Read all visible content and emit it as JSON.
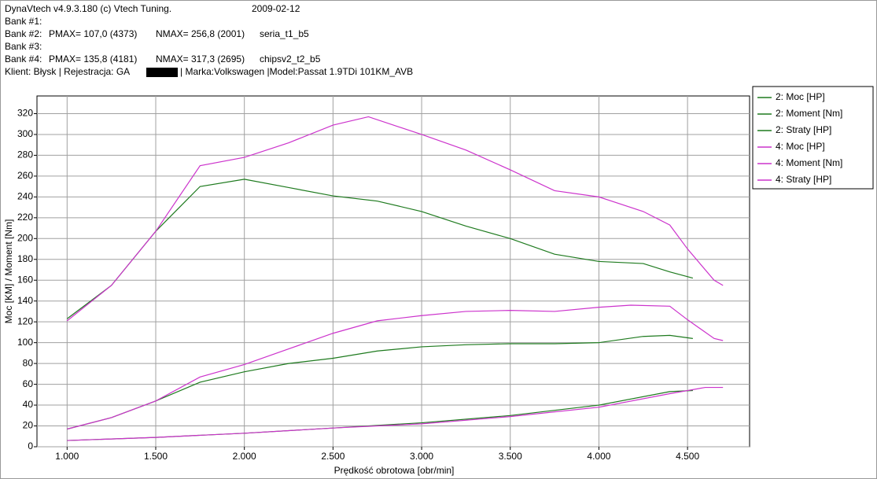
{
  "header": {
    "program": "DynaVtech v4.9.3.180 (c) Vtech Tuning.",
    "date": "2009-02-12",
    "banks": [
      {
        "label": "Bank #1:"
      },
      {
        "label": "Bank #2:",
        "pmax": "PMAX= 107,0 (4373)",
        "nmax": "NMAX= 256,8 (2001)",
        "name": "seria_t1_b5"
      },
      {
        "label": "Bank #3:"
      },
      {
        "label": "Bank #4:",
        "pmax": "PMAX= 135,8 (4181)",
        "nmax": "NMAX= 317,3 (2695)",
        "name": "chipsv2_t2_b5"
      }
    ],
    "client": "Klient: Błysk | Rejestracja: GA",
    "vehicle": "| Marka:Volkswagen |Model:Passat 1.9TDi 101KM_AVB"
  },
  "chart_data": {
    "type": "line",
    "x_label": "Prędkość obrotowa [obr/min]",
    "y_label": "Moc [KM] / Moment [Nm]",
    "xlim": [
      830,
      4850
    ],
    "ylim": [
      0,
      337
    ],
    "xticks": [
      {
        "value": 1000,
        "label": "1.000"
      },
      {
        "value": 1500,
        "label": "1.500"
      },
      {
        "value": 2000,
        "label": "2.000"
      },
      {
        "value": 2500,
        "label": "2.500"
      },
      {
        "value": 3000,
        "label": "3.000"
      },
      {
        "value": 3500,
        "label": "3.500"
      },
      {
        "value": 4000,
        "label": "4.000"
      },
      {
        "value": 4500,
        "label": "4.500"
      }
    ],
    "yticks": [
      0,
      20,
      40,
      60,
      80,
      100,
      120,
      140,
      160,
      180,
      200,
      220,
      240,
      260,
      280,
      300,
      320
    ],
    "grid": true,
    "legend": "right",
    "series": [
      {
        "name": "2: Moc [HP]",
        "color": "#1e7a1e",
        "x": [
          1000,
          1250,
          1500,
          1750,
          2000,
          2250,
          2500,
          2750,
          3000,
          3250,
          3500,
          3750,
          4000,
          4250,
          4400,
          4530
        ],
        "values": [
          17,
          28,
          44,
          62,
          72,
          80,
          85,
          92,
          96,
          98,
          99,
          99,
          100,
          106,
          107,
          104
        ]
      },
      {
        "name": "2: Moment [Nm]",
        "color": "#1e7a1e",
        "x": [
          1000,
          1250,
          1500,
          1750,
          2000,
          2250,
          2500,
          2750,
          3000,
          3250,
          3500,
          3750,
          4000,
          4250,
          4400,
          4530
        ],
        "values": [
          123,
          155,
          207,
          250,
          257,
          249,
          241,
          236,
          226,
          212,
          200,
          185,
          178,
          176,
          168,
          162
        ]
      },
      {
        "name": "2: Straty [HP]",
        "color": "#1e7a1e",
        "x": [
          1000,
          1500,
          2000,
          2500,
          3000,
          3500,
          4000,
          4400,
          4530
        ],
        "values": [
          6,
          9,
          13,
          18,
          23,
          30,
          40,
          53,
          54
        ]
      },
      {
        "name": "4: Moc [HP]",
        "color": "#cc33cc",
        "x": [
          1000,
          1250,
          1500,
          1750,
          2000,
          2250,
          2500,
          2750,
          3000,
          3250,
          3500,
          3750,
          4000,
          4180,
          4400,
          4500,
          4650,
          4700
        ],
        "values": [
          17,
          28,
          44,
          67,
          79,
          94,
          109,
          121,
          126,
          130,
          131,
          130,
          134,
          136,
          135,
          122,
          104,
          102
        ]
      },
      {
        "name": "4: Moment [Nm]",
        "color": "#cc33cc",
        "x": [
          1000,
          1250,
          1500,
          1750,
          2000,
          2250,
          2500,
          2700,
          3000,
          3250,
          3500,
          3750,
          4000,
          4250,
          4400,
          4500,
          4650,
          4700
        ],
        "values": [
          121,
          155,
          207,
          270,
          278,
          292,
          309,
          317,
          300,
          285,
          266,
          246,
          240,
          226,
          213,
          190,
          160,
          155
        ]
      },
      {
        "name": "4: Straty [HP]",
        "color": "#cc33cc",
        "x": [
          1000,
          1500,
          2000,
          2500,
          3000,
          3500,
          4000,
          4400,
          4600,
          4700
        ],
        "values": [
          6,
          9,
          13,
          18,
          22,
          29,
          38,
          51,
          57,
          57
        ]
      }
    ]
  }
}
